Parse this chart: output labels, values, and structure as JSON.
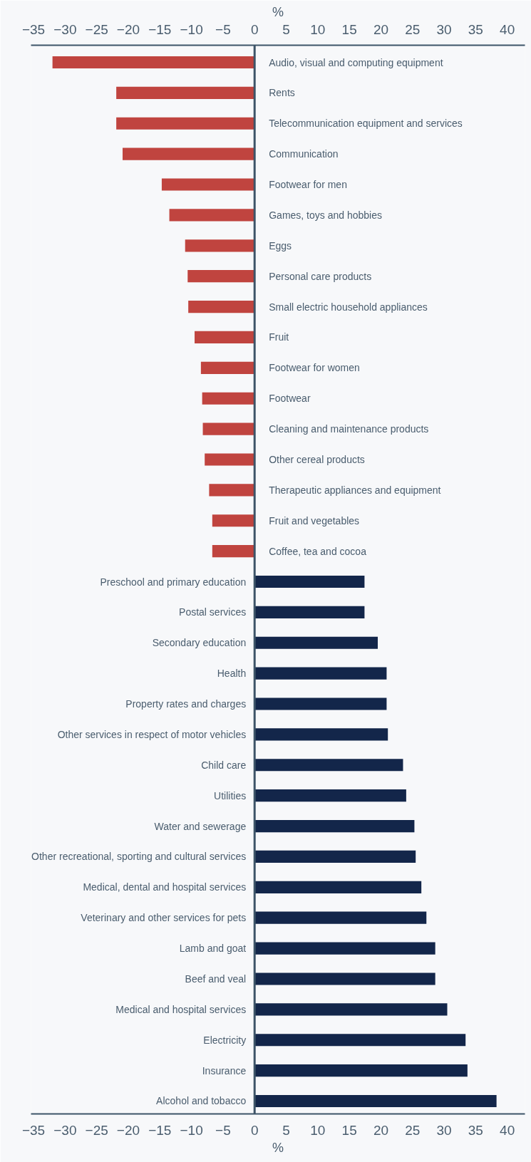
{
  "chart_data": {
    "type": "bar",
    "orientation": "horizontal",
    "categories": [
      "Audio, visual and computing equipment",
      "Rents",
      "Telecommunication equipment and services",
      "Communication",
      "Footwear for men",
      "Games, toys and hobbies",
      "Eggs",
      "Personal care products",
      "Small electric household appliances",
      "Fruit",
      "Footwear for women",
      "Footwear",
      "Cleaning and maintenance products",
      "Other cereal products",
      "Therapeutic appliances and equipment",
      "Fruit and vegetables",
      "Coffee, tea and cocoa",
      "Preschool and primary education",
      "Postal services",
      "Secondary education",
      "Health",
      "Property rates and charges",
      "Other services in respect of motor vehicles",
      "Child care",
      "Utilities",
      "Water and sewerage",
      "Other recreational, sporting and cultural services",
      "Medical, dental and hospital services",
      "Veterinary and other services for pets",
      "Lamb and goat",
      "Beef and veal",
      "Medical and hospital services",
      "Electricity",
      "Insurance",
      "Alcohol and tobacco"
    ],
    "values": [
      -32.0,
      -21.9,
      -21.9,
      -20.9,
      -14.7,
      -13.5,
      -11.0,
      -10.6,
      -10.5,
      -9.5,
      -8.5,
      -8.3,
      -8.2,
      -7.9,
      -7.2,
      -6.7,
      -6.7,
      17.4,
      17.4,
      19.5,
      20.9,
      20.9,
      21.1,
      23.5,
      24.0,
      25.3,
      25.5,
      26.4,
      27.2,
      28.6,
      28.6,
      30.5,
      33.4,
      33.7,
      38.3
    ],
    "colors": [
      "#c0443f",
      "#c0443f",
      "#c0443f",
      "#c0443f",
      "#c0443f",
      "#c0443f",
      "#c0443f",
      "#c0443f",
      "#c0443f",
      "#c0443f",
      "#c0443f",
      "#c0443f",
      "#c0443f",
      "#c0443f",
      "#c0443f",
      "#c0443f",
      "#c0443f",
      "#13264a",
      "#13264a",
      "#13264a",
      "#13264a",
      "#13264a",
      "#13264a",
      "#13264a",
      "#13264a",
      "#13264a",
      "#13264a",
      "#13264a",
      "#13264a",
      "#13264a",
      "#13264a",
      "#13264a",
      "#13264a",
      "#13264a",
      "#13264a"
    ],
    "xlabel": "%",
    "x2label": "%",
    "xlim": [
      -35.4,
      42.8
    ],
    "xticks": [
      -35,
      -30,
      -25,
      -20,
      -15,
      -10,
      -5,
      0,
      5,
      10,
      15,
      20,
      25,
      30,
      35,
      40
    ],
    "x2lim": [
      -35.4,
      42.8
    ],
    "x2ticks": [
      -35,
      -30,
      -25,
      -20,
      -15,
      -10,
      -5,
      0,
      5,
      10,
      15,
      20,
      25,
      30,
      35,
      40
    ],
    "ref_lines": [
      {
        "axis": "x",
        "value": 0,
        "color": "#3d5468"
      }
    ]
  }
}
